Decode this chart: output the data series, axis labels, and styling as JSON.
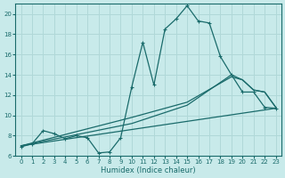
{
  "xlabel": "Humidex (Indice chaleur)",
  "xlim": [
    -0.5,
    23.5
  ],
  "ylim": [
    6,
    21
  ],
  "yticks": [
    6,
    8,
    10,
    12,
    14,
    16,
    18,
    20
  ],
  "xticks": [
    0,
    1,
    2,
    3,
    4,
    5,
    6,
    7,
    8,
    9,
    10,
    11,
    12,
    13,
    14,
    15,
    16,
    17,
    18,
    19,
    20,
    21,
    22,
    23
  ],
  "bg_color": "#c8eaea",
  "line_color": "#1a6b6b",
  "grid_color": "#b0d8d8",
  "line1_x": [
    0,
    1,
    2,
    3,
    4,
    5,
    6,
    7,
    8,
    9,
    10,
    11,
    12,
    13,
    14,
    15,
    16,
    17,
    18,
    19,
    20,
    21,
    22,
    23
  ],
  "line1_y": [
    6.9,
    7.2,
    8.5,
    8.2,
    7.7,
    8.0,
    7.8,
    6.3,
    6.4,
    7.8,
    12.8,
    17.2,
    13.0,
    18.5,
    19.5,
    20.8,
    19.3,
    19.1,
    15.8,
    14.0,
    12.3,
    12.3,
    10.8,
    10.7
  ],
  "line2_x": [
    0,
    10,
    15,
    19,
    20,
    21,
    22,
    23
  ],
  "line2_y": [
    7.0,
    9.8,
    11.3,
    13.8,
    13.5,
    12.5,
    12.3,
    10.8
  ],
  "line3_x": [
    0,
    10,
    15,
    19,
    20,
    21,
    22,
    23
  ],
  "line3_y": [
    7.0,
    9.2,
    11.0,
    14.0,
    13.5,
    12.5,
    12.3,
    10.8
  ],
  "line4_x": [
    0,
    23
  ],
  "line4_y": [
    7.0,
    10.7
  ]
}
